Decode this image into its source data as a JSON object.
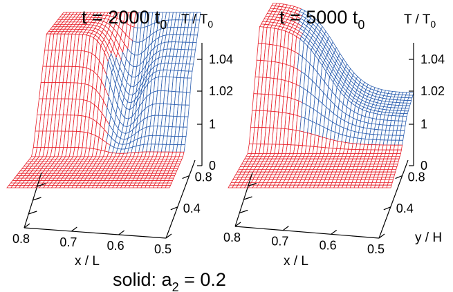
{
  "caption": {
    "text": "solid: a",
    "sub": "2",
    "rest": " = 0.2"
  },
  "chart_data": [
    {
      "type": "surface",
      "title": {
        "main": "t = 2000 t",
        "sub": "0"
      },
      "zlabel": {
        "main": "T / T",
        "sub": "0"
      },
      "xlabel": "x / L",
      "ylabel": "",
      "xticks": [
        "0.8",
        "0.7",
        "0.6",
        "0.5"
      ],
      "yticks": [
        "0.4",
        "0.8"
      ],
      "zticks": [
        "0",
        "1",
        "1.02",
        "1.04"
      ],
      "xlim": [
        0.5,
        0.8
      ],
      "ylim": [
        0,
        1
      ],
      "series": [
        {
          "name": "",
          "color": "#e8202a"
        },
        {
          "name": "",
          "color": "#2c5fb0"
        }
      ]
    },
    {
      "type": "surface",
      "title": {
        "main": "t = 5000 t",
        "sub": "0"
      },
      "zlabel": {
        "main": "T / T",
        "sub": "0"
      },
      "xlabel": "x / L",
      "ylabel": "y / H",
      "xticks": [
        "0.8",
        "0.7",
        "0.6",
        "0.5"
      ],
      "yticks": [
        "0.4",
        "0.8"
      ],
      "zticks": [
        "0",
        "1",
        "1.02",
        "1.04"
      ],
      "xlim": [
        0.5,
        0.8
      ],
      "ylim": [
        0,
        1
      ],
      "series": [
        {
          "name": "",
          "color": "#e8202a"
        },
        {
          "name": "",
          "color": "#2c5fb0"
        }
      ]
    }
  ]
}
